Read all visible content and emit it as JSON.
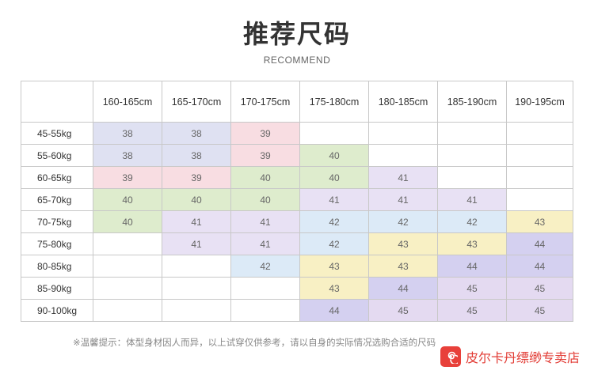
{
  "header": {
    "title": "推荐尺码",
    "subtitle": "RECOMMEND"
  },
  "table": {
    "columns": [
      "160-165cm",
      "165-170cm",
      "170-175cm",
      "175-180cm",
      "180-185cm",
      "185-190cm",
      "190-195cm"
    ],
    "rows": [
      {
        "label": "45-55kg",
        "cells": [
          "38",
          "38",
          "39",
          "",
          "",
          "",
          ""
        ]
      },
      {
        "label": "55-60kg",
        "cells": [
          "38",
          "38",
          "39",
          "40",
          "",
          "",
          ""
        ]
      },
      {
        "label": "60-65kg",
        "cells": [
          "39",
          "39",
          "40",
          "40",
          "41",
          "",
          ""
        ]
      },
      {
        "label": "65-70kg",
        "cells": [
          "40",
          "40",
          "40",
          "41",
          "41",
          "41",
          ""
        ]
      },
      {
        "label": "70-75kg",
        "cells": [
          "40",
          "41",
          "41",
          "42",
          "42",
          "42",
          "43"
        ]
      },
      {
        "label": "75-80kg",
        "cells": [
          "",
          "41",
          "41",
          "42",
          "43",
          "43",
          "44"
        ]
      },
      {
        "label": "80-85kg",
        "cells": [
          "",
          "",
          "42",
          "43",
          "43",
          "44",
          "44"
        ]
      },
      {
        "label": "85-90kg",
        "cells": [
          "",
          "",
          "",
          "43",
          "44",
          "45",
          "45"
        ]
      },
      {
        "label": "90-100kg",
        "cells": [
          "",
          "",
          "",
          "44",
          "45",
          "45",
          "45"
        ]
      }
    ]
  },
  "colors": {
    "38": "#dfe1f2",
    "39": "#f8dde2",
    "40": "#deeccd",
    "41": "#e8e1f4",
    "42": "#dceaf7",
    "43": "#f8f0c4",
    "44": "#d4d0f0",
    "45": "#e4daf1"
  },
  "footer": {
    "note": "※温馨提示：体型身材因人而异，以上试穿仅供参考，请以自身的实际情况选购合适的尺码",
    "store_name": "皮尔卡丹缥缈专卖店",
    "store_icon": "spiral-logo-icon"
  }
}
